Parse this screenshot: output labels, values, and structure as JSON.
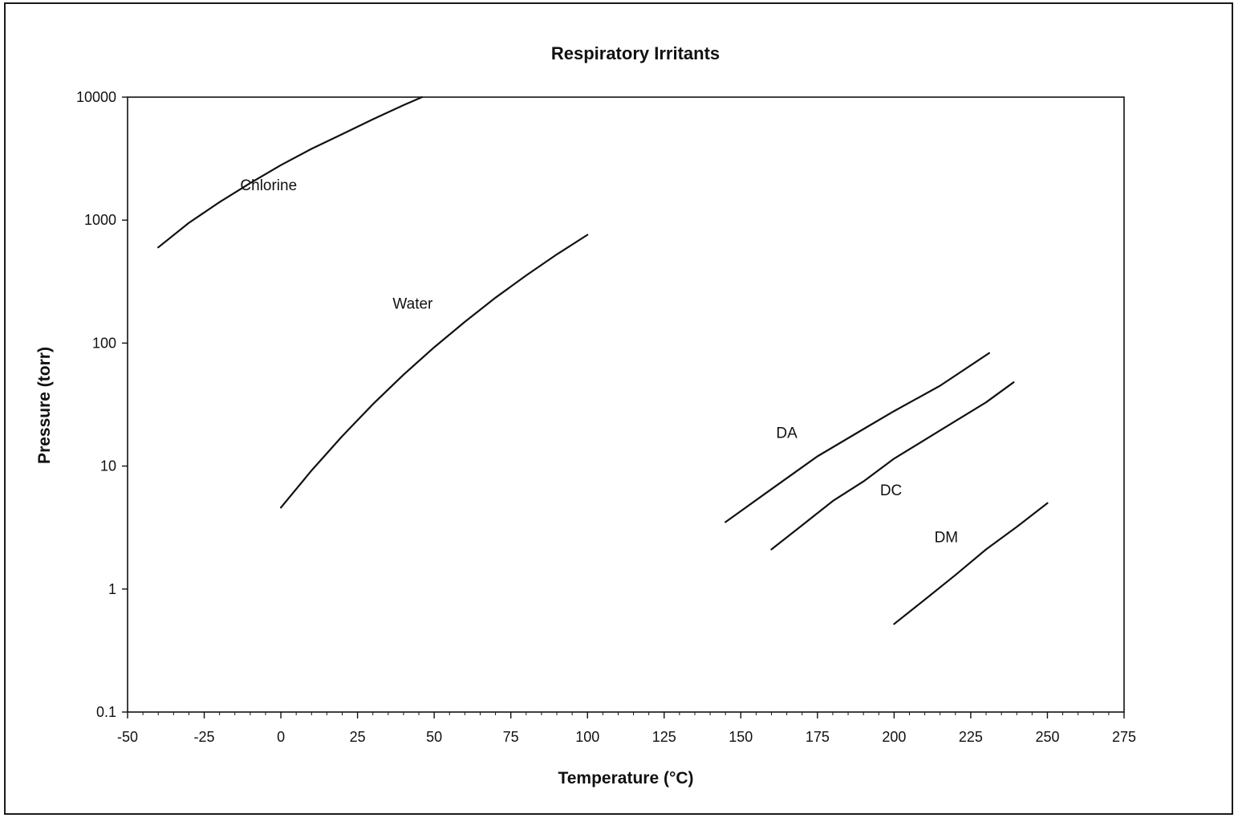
{
  "chart_data": {
    "type": "line",
    "title": "Respiratory Irritants",
    "xlabel": "Temperature (°C)",
    "ylabel": "Pressure (torr)",
    "xlim": [
      -50,
      275
    ],
    "ylim": [
      0.1,
      10000
    ],
    "y_scale": "log",
    "x_ticks": [
      "-50",
      "-25",
      "0",
      "25",
      "50",
      "75",
      "100",
      "125",
      "150",
      "175",
      "200",
      "225",
      "250",
      "275"
    ],
    "y_ticks": [
      "0.1",
      "1",
      "10",
      "100",
      "1000",
      "10000"
    ],
    "grid": false,
    "legend": "none",
    "series": [
      {
        "name": "Chlorine",
        "points": [
          [
            -40,
            600
          ],
          [
            -30,
            950
          ],
          [
            -20,
            1400
          ],
          [
            -10,
            2000
          ],
          [
            0,
            2800
          ],
          [
            10,
            3800
          ],
          [
            20,
            5000
          ],
          [
            30,
            6600
          ],
          [
            40,
            8600
          ],
          [
            46,
            10000
          ]
        ]
      },
      {
        "name": "Water",
        "points": [
          [
            0,
            4.6
          ],
          [
            10,
            9.2
          ],
          [
            20,
            17.5
          ],
          [
            30,
            31.8
          ],
          [
            40,
            55.3
          ],
          [
            50,
            92.5
          ],
          [
            60,
            149
          ],
          [
            70,
            234
          ],
          [
            80,
            355
          ],
          [
            90,
            526
          ],
          [
            100,
            760
          ]
        ]
      },
      {
        "name": "DA",
        "points": [
          [
            145,
            3.5
          ],
          [
            160,
            6.5
          ],
          [
            175,
            12
          ],
          [
            190,
            20
          ],
          [
            200,
            28
          ],
          [
            215,
            45
          ],
          [
            231,
            83
          ]
        ]
      },
      {
        "name": "DC",
        "points": [
          [
            160,
            2.1
          ],
          [
            170,
            3.3
          ],
          [
            180,
            5.2
          ],
          [
            190,
            7.5
          ],
          [
            200,
            11.5
          ],
          [
            215,
            19.5
          ],
          [
            230,
            33
          ],
          [
            239,
            48
          ]
        ]
      },
      {
        "name": "DM",
        "points": [
          [
            200,
            0.52
          ],
          [
            210,
            0.82
          ],
          [
            220,
            1.3
          ],
          [
            230,
            2.1
          ],
          [
            240,
            3.2
          ],
          [
            250,
            5.0
          ]
        ]
      }
    ],
    "annotations": [
      {
        "text": "Chlorine",
        "x": -4,
        "y": 1750
      },
      {
        "text": "Water",
        "x": 43,
        "y": 190
      },
      {
        "text": "DA",
        "x": 165,
        "y": 17
      },
      {
        "text": "DC",
        "x": 199,
        "y": 5.8
      },
      {
        "text": "DM",
        "x": 217,
        "y": 2.4
      }
    ]
  }
}
